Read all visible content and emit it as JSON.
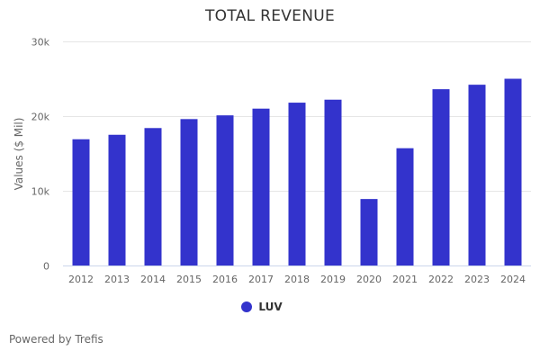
{
  "chart_data": {
    "type": "bar",
    "title": "TOTAL REVENUE",
    "xlabel": "",
    "ylabel": "Values ($ Mil)",
    "ylim": [
      0,
      30000
    ],
    "yticks": [
      0,
      10000,
      20000,
      30000
    ],
    "ytick_labels": [
      "0",
      "10k",
      "20k",
      "30k"
    ],
    "grid": true,
    "categories": [
      "2012",
      "2013",
      "2014",
      "2015",
      "2016",
      "2017",
      "2018",
      "2019",
      "2020",
      "2021",
      "2022",
      "2023",
      "2024"
    ],
    "series": [
      {
        "name": "LUV",
        "color": "#3333cc",
        "values": [
          16900,
          17500,
          18400,
          19600,
          20100,
          21000,
          21800,
          22200,
          8900,
          15700,
          23600,
          24200,
          25000
        ]
      }
    ],
    "legend_position": "bottom-center"
  },
  "footer": {
    "credit": "Powered by Trefis"
  }
}
